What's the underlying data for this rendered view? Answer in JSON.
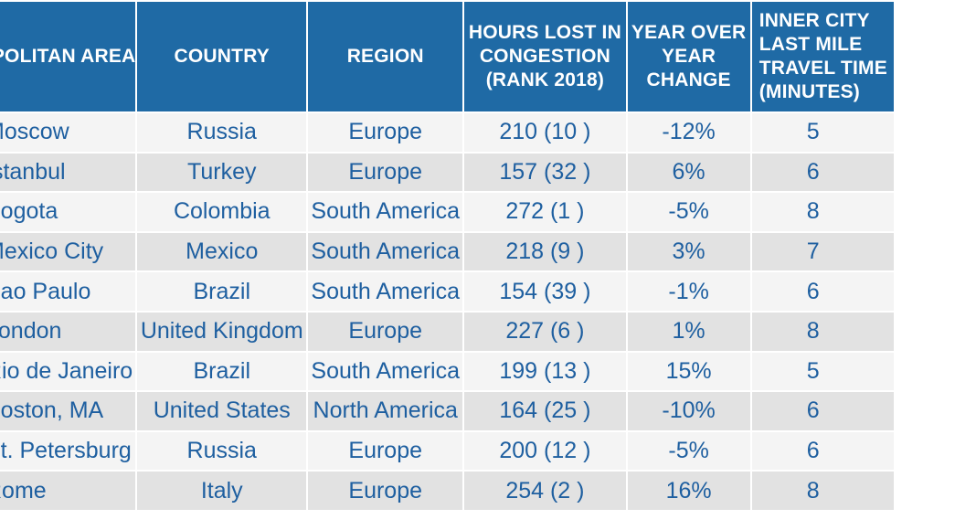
{
  "headers": {
    "metro_area": [
      "METROPOLITAN AREA"
    ],
    "country": [
      "COUNTRY"
    ],
    "region": [
      "REGION"
    ],
    "hours_lost": [
      "HOURS LOST IN",
      "CONGESTION",
      "(RANK 2018)"
    ],
    "yoy": [
      "YEAR OVER",
      "YEAR",
      "CHANGE"
    ],
    "inner_city": [
      "INNER CITY",
      "LAST MILE",
      "TRAVEL TIME",
      "(MINUTES)"
    ]
  },
  "rows": [
    {
      "city": "Moscow",
      "country": "Russia",
      "region": "Europe",
      "hours": "210 (10 )",
      "change": "-12%",
      "last_mile": "5"
    },
    {
      "city": "Istanbul",
      "country": "Turkey",
      "region": "Europe",
      "hours": "157 (32 )",
      "change": "6%",
      "last_mile": "6"
    },
    {
      "city": "Bogota",
      "country": "Colombia",
      "region": "South America",
      "hours": "272 (1 )",
      "change": "-5%",
      "last_mile": "8"
    },
    {
      "city": "Mexico City",
      "country": "Mexico",
      "region": "South America",
      "hours": "218 (9 )",
      "change": "3%",
      "last_mile": "7"
    },
    {
      "city": "Sao Paulo",
      "country": "Brazil",
      "region": "South America",
      "hours": "154 (39 )",
      "change": "-1%",
      "last_mile": "6"
    },
    {
      "city": "London",
      "country": "United Kingdom",
      "region": "Europe",
      "hours": "227 (6 )",
      "change": "1%",
      "last_mile": "8"
    },
    {
      "city": "Rio de Janeiro",
      "country": "Brazil",
      "region": "South America",
      "hours": "199 (13 )",
      "change": "15%",
      "last_mile": "5"
    },
    {
      "city": "Boston, MA",
      "country": "United States",
      "region": "North America",
      "hours": "164 (25 )",
      "change": "-10%",
      "last_mile": "6"
    },
    {
      "city": "St. Petersburg",
      "country": "Russia",
      "region": "Europe",
      "hours": "200 (12 )",
      "change": "-5%",
      "last_mile": "6"
    },
    {
      "city": "Rome",
      "country": "Italy",
      "region": "Europe",
      "hours": "254 (2 )",
      "change": "16%",
      "last_mile": "8"
    }
  ]
}
